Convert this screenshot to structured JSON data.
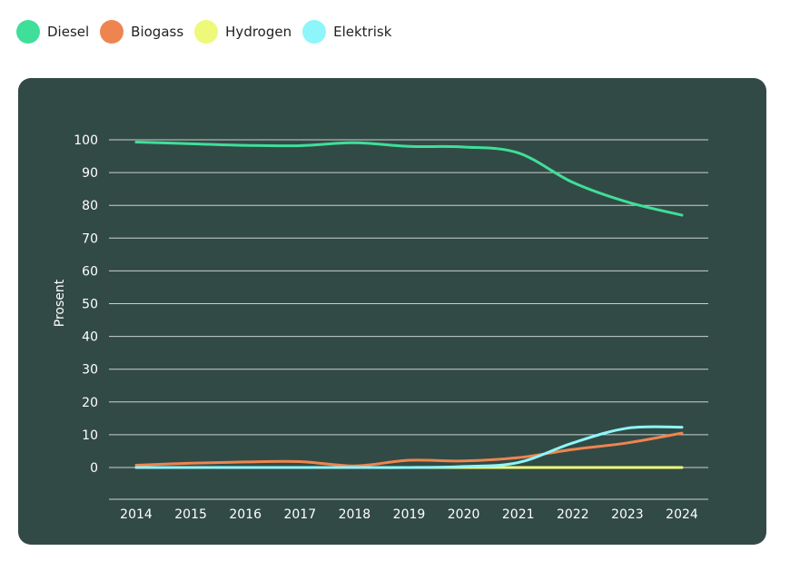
{
  "chart_data": {
    "type": "line",
    "title": "",
    "xlabel": "",
    "ylabel": "Prosent",
    "x": [
      "2014",
      "2015",
      "2016",
      "2017",
      "2018",
      "2019",
      "2020",
      "2021",
      "2022",
      "2023",
      "2024"
    ],
    "yticks": [
      0,
      10,
      20,
      30,
      40,
      50,
      60,
      70,
      80,
      90,
      100
    ],
    "ylim": [
      -10,
      100
    ],
    "grid": true,
    "legend_position": "top-left",
    "series": [
      {
        "name": "Diesel",
        "color": "#3fdf9a",
        "values": [
          99.3,
          98.8,
          98.3,
          98.2,
          99.1,
          98.0,
          97.8,
          96.0,
          87.0,
          81.0,
          77.0
        ]
      },
      {
        "name": "Biogass",
        "color": "#ee8550",
        "values": [
          0.7,
          1.3,
          1.7,
          1.8,
          0.5,
          2.2,
          2.0,
          3.0,
          5.5,
          7.5,
          10.5
        ]
      },
      {
        "name": "Hydrogen",
        "color": "#eef97a",
        "values": [
          0,
          0,
          0,
          0,
          0,
          0,
          0,
          0,
          0,
          0,
          0
        ]
      },
      {
        "name": "Elektrisk",
        "color": "#8ef6fb",
        "values": [
          0,
          0,
          0,
          0,
          0,
          0,
          0.3,
          1.5,
          7.5,
          12.0,
          12.3
        ]
      }
    ]
  }
}
